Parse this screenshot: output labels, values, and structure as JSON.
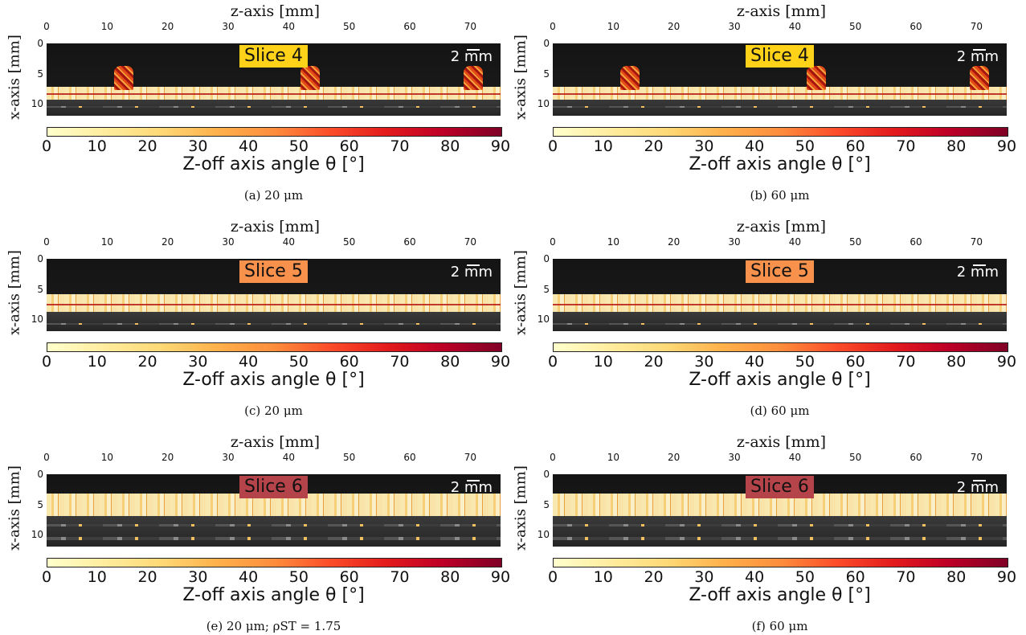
{
  "axes": {
    "z_title": "z-axis [mm]",
    "x_title": "x-axis [mm]",
    "z_ticks": [
      "0",
      "10",
      "20",
      "30",
      "40",
      "50",
      "60",
      "70"
    ],
    "x_ticks": [
      "0",
      "5",
      "10"
    ],
    "colorbar_ticks": [
      "0",
      "10",
      "20",
      "30",
      "40",
      "50",
      "60",
      "70",
      "80",
      "90"
    ],
    "colorbar_title": "Z-off axis angle θ [°]",
    "scale_label": "2 mm"
  },
  "panels": [
    {
      "slice": "Slice 4",
      "slice_color": "#ffd21a",
      "caption": "(a)  20 μm",
      "variant": "bumps"
    },
    {
      "slice": "Slice 4",
      "slice_color": "#ffd21a",
      "caption": "(b)  60 μm",
      "variant": "bumps"
    },
    {
      "slice": "Slice 5",
      "slice_color": "#f7914c",
      "caption": "(c)  20 μm",
      "variant": "flat"
    },
    {
      "slice": "Slice 5",
      "slice_color": "#f7914c",
      "caption": "(d)  60 μm",
      "variant": "flat"
    },
    {
      "slice": "Slice 6",
      "slice_color": "#b5444a",
      "caption": "(e)  20 μm; ρST = 1.75",
      "variant": "thick"
    },
    {
      "slice": "Slice 6",
      "slice_color": "#b5444a",
      "caption": "(f)  60 μm",
      "variant": "thick"
    }
  ],
  "colormap": [
    "#ffffcc",
    "#ffeda0",
    "#fed976",
    "#feb24c",
    "#fd8d3c",
    "#fc4e2a",
    "#e31a1c",
    "#bd0026",
    "#800026"
  ]
}
